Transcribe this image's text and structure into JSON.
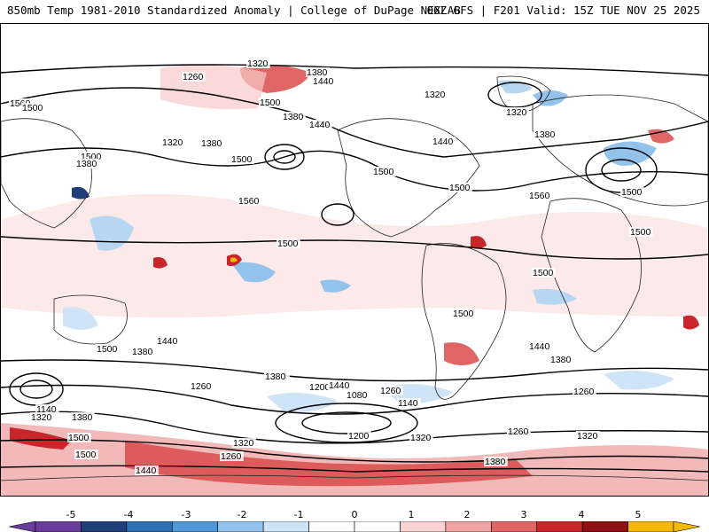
{
  "header": {
    "title_left": "850mb Temp 1981-2010 Standardized Anomaly | College of DuPage NEXLAB",
    "title_right": "06Z GFS | F201 Valid: 15Z TUE NOV 25 2025"
  },
  "colorbar": {
    "labels": [
      "-5",
      "-4",
      "-3",
      "-2",
      "-1",
      "0",
      "1",
      "2",
      "3",
      "4",
      "5"
    ],
    "colors": [
      "#6a3d9a",
      "#1f3f7a",
      "#2e6fb5",
      "#4f97d6",
      "#93c2ea",
      "#cfe4f7",
      "#ffffff",
      "#ffffff",
      "#f8d3d3",
      "#eea4a4",
      "#e06666",
      "#c8262b",
      "#8e0f14",
      "#f5b800"
    ]
  },
  "map": {
    "contour_labels": [
      "1320",
      "1380",
      "1260",
      "1440",
      "1500",
      "1560",
      "1320",
      "1500",
      "1380",
      "1500",
      "1320",
      "1440",
      "1500",
      "1560",
      "1380",
      "1320",
      "1440",
      "1380",
      "1380",
      "1500",
      "1500",
      "1560",
      "1500",
      "1500",
      "1500",
      "1500",
      "1440",
      "1380",
      "1500",
      "1500",
      "1440",
      "1380",
      "1260",
      "1320",
      "1200",
      "1080",
      "1260",
      "1140",
      "1140",
      "1260",
      "1320",
      "1380",
      "1500",
      "1440",
      "1260",
      "1200",
      "1320",
      "1380",
      "1320",
      "1380",
      "1260",
      "1320",
      "1440",
      "1500"
    ],
    "anomaly_palette": {
      "strong_warm": "#c8262b",
      "warm": "#eea4a4",
      "mild_warm": "#f8d3d3",
      "mild_cold": "#cfe4f7",
      "cold": "#93c2ea",
      "strong_cold": "#4f97d6"
    }
  }
}
